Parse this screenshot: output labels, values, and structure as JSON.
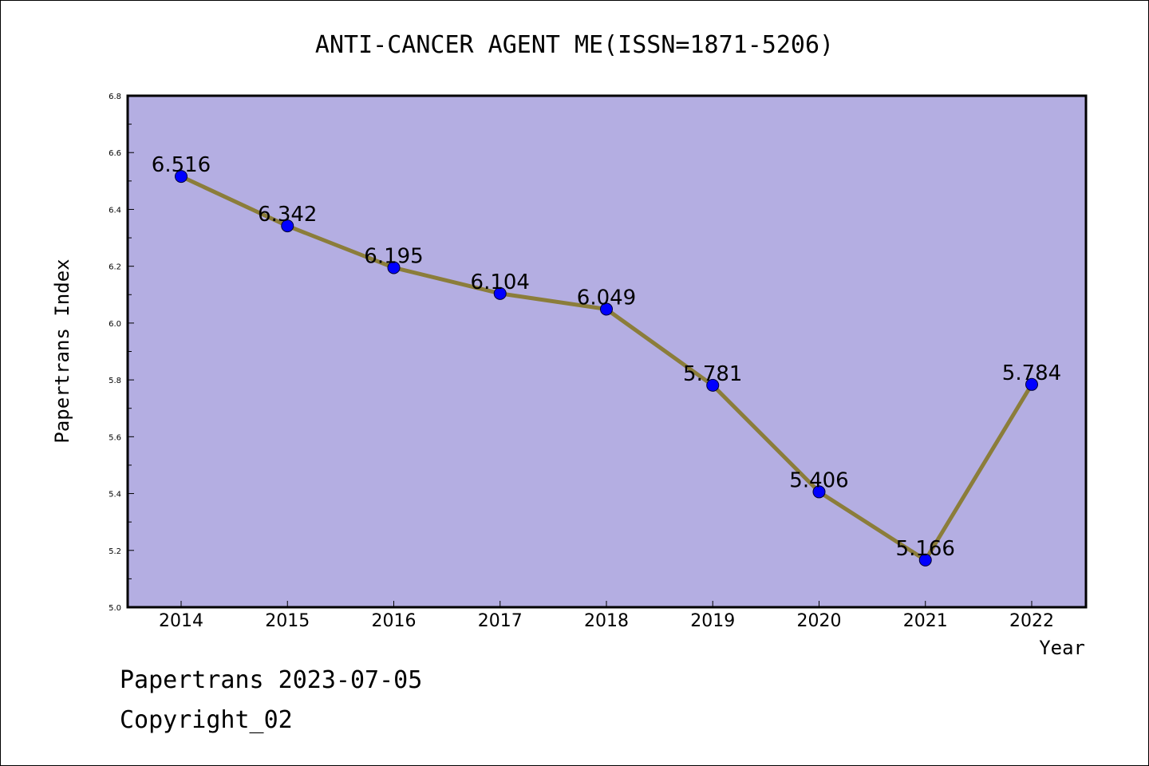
{
  "chart_data": {
    "type": "line",
    "title": "ANTI-CANCER AGENT ME(ISSN=1871-5206)",
    "xlabel": "Year",
    "ylabel": "Papertrans Index",
    "categories": [
      "2014",
      "2015",
      "2016",
      "2017",
      "2018",
      "2019",
      "2020",
      "2021",
      "2022"
    ],
    "series": [
      {
        "values": [
          6.516,
          6.342,
          6.195,
          6.104,
          6.049,
          5.781,
          5.406,
          5.166,
          5.784
        ],
        "data_labels": [
          "6.516",
          "6.342",
          "6.195",
          "6.104",
          "6.049",
          "5.781",
          "5.406",
          "5.166",
          "5.784"
        ],
        "line_color": "#8b7d3a",
        "marker_color": "#0000ff"
      }
    ],
    "ylim": [
      5.0,
      6.8
    ],
    "y_ticks": [
      "5.0",
      "5.2",
      "5.4",
      "5.6",
      "5.8",
      "6.0",
      "6.2",
      "6.4",
      "6.6",
      "6.8"
    ],
    "plot_background": "#b4aee2",
    "grid": false,
    "legend": "none"
  },
  "footer": {
    "line1": "Papertrans 2023-07-05",
    "line2": "Copyright_02"
  }
}
